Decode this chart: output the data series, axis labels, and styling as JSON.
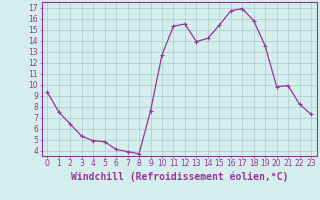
{
  "x": [
    0,
    1,
    2,
    3,
    4,
    5,
    6,
    7,
    8,
    9,
    10,
    11,
    12,
    13,
    14,
    15,
    16,
    17,
    18,
    19,
    20,
    21,
    22,
    23
  ],
  "y": [
    9.3,
    7.5,
    6.4,
    5.3,
    4.9,
    4.8,
    4.1,
    3.9,
    3.7,
    7.6,
    12.7,
    15.3,
    15.5,
    13.9,
    14.2,
    15.4,
    16.7,
    16.9,
    15.8,
    13.5,
    9.8,
    9.9,
    8.2,
    7.3
  ],
  "line_color": "#993399",
  "marker": "+",
  "marker_size": 3,
  "marker_linewidth": 0.8,
  "background_color": "#d4eeed",
  "grid_color": "#aacccc",
  "xlabel": "Windchill (Refroidissement éolien,°C)",
  "xlabel_fontsize": 7.0,
  "ylim": [
    3.5,
    17.5
  ],
  "xlim": [
    -0.5,
    23.5
  ],
  "yticks": [
    4,
    5,
    6,
    7,
    8,
    9,
    10,
    11,
    12,
    13,
    14,
    15,
    16,
    17
  ],
  "xticks": [
    0,
    1,
    2,
    3,
    4,
    5,
    6,
    7,
    8,
    9,
    10,
    11,
    12,
    13,
    14,
    15,
    16,
    17,
    18,
    19,
    20,
    21,
    22,
    23
  ],
  "tick_fontsize": 5.5,
  "tick_color": "#993399",
  "spine_color": "#993399",
  "line_width": 0.9
}
